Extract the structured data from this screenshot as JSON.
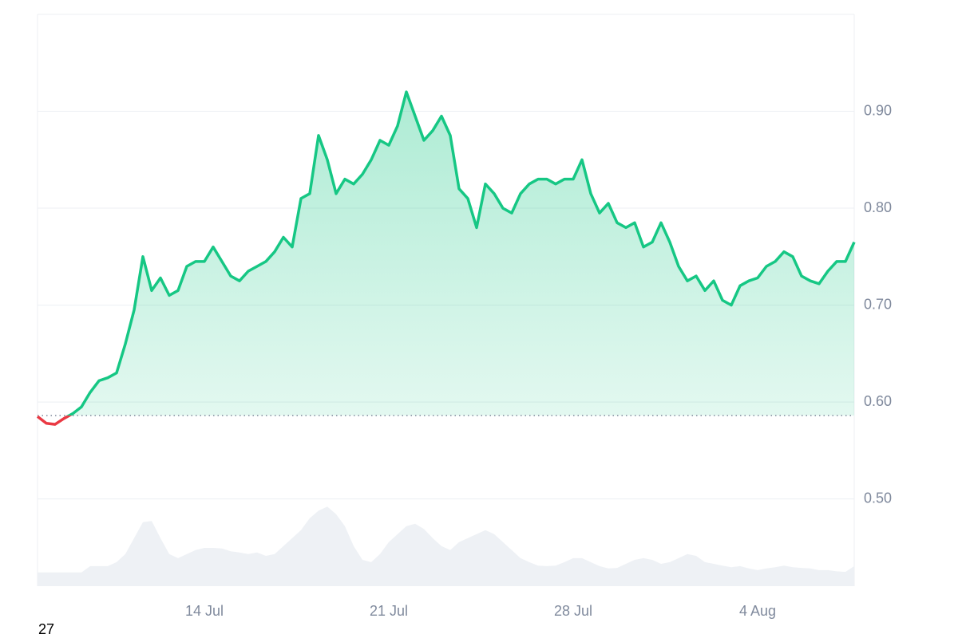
{
  "chart_data": {
    "type": "line",
    "categories": [
      null,
      null,
      null,
      null,
      null,
      null,
      null,
      null,
      null,
      null,
      null,
      null,
      null,
      null,
      null,
      null,
      null,
      null,
      null,
      "14 Jul",
      null,
      null,
      null,
      null,
      null,
      null,
      null,
      null,
      null,
      null,
      null,
      null,
      null,
      null,
      null,
      null,
      null,
      null,
      null,
      null,
      "21 Jul",
      null,
      null,
      null,
      null,
      null,
      null,
      null,
      null,
      null,
      null,
      null,
      null,
      null,
      null,
      null,
      null,
      null,
      null,
      null,
      null,
      "28 Jul",
      null,
      null,
      null,
      null,
      null,
      null,
      null,
      null,
      null,
      null,
      null,
      null,
      null,
      null,
      null,
      null,
      null,
      null,
      null,
      null,
      "4 Aug",
      null,
      null,
      null,
      null,
      null,
      null,
      null,
      null,
      null,
      null,
      null
    ],
    "series": [
      {
        "color": "#16c784",
        "down_color": "#ea3943",
        "values": [
          0.585,
          0.578,
          0.577,
          0.583,
          0.588,
          0.595,
          0.61,
          0.622,
          0.625,
          0.63,
          0.66,
          0.695,
          0.75,
          0.715,
          0.728,
          0.71,
          0.715,
          0.74,
          0.745,
          0.745,
          0.76,
          0.745,
          0.73,
          0.725,
          0.735,
          0.74,
          0.745,
          0.755,
          0.77,
          0.76,
          0.81,
          0.815,
          0.875,
          0.85,
          0.815,
          0.83,
          0.825,
          0.835,
          0.85,
          0.87,
          0.865,
          0.885,
          0.92,
          0.895,
          0.87,
          0.88,
          0.895,
          0.875,
          0.82,
          0.81,
          0.78,
          0.825,
          0.815,
          0.8,
          0.795,
          0.815,
          0.825,
          0.83,
          0.83,
          0.825,
          0.83,
          0.83,
          0.85,
          0.815,
          0.795,
          0.805,
          0.785,
          0.78,
          0.785,
          0.76,
          0.765,
          0.785,
          0.765,
          0.74,
          0.725,
          0.73,
          0.715,
          0.725,
          0.705,
          0.7,
          0.72,
          0.725,
          0.728,
          0.74,
          0.745,
          0.755,
          0.75,
          0.73,
          0.725,
          0.722,
          0.735,
          0.745,
          0.745,
          0.765
        ]
      },
      {
        "axis": "y2",
        "color": "#eef1f5",
        "values": [
          2.4,
          2.4,
          2.4,
          2.4,
          2.4,
          2.4,
          3.5,
          3.5,
          3.5,
          4.2,
          5.6,
          8.4,
          11.2,
          11.4,
          8.4,
          5.6,
          4.9,
          5.6,
          6.3,
          6.7,
          6.7,
          6.6,
          6.1,
          5.9,
          5.6,
          5.9,
          5.3,
          5.6,
          7.0,
          8.4,
          9.8,
          11.9,
          13.2,
          13.9,
          12.6,
          10.5,
          7.0,
          4.6,
          4.2,
          5.6,
          7.7,
          9.1,
          10.5,
          10.9,
          10.0,
          8.4,
          7.0,
          6.3,
          7.7,
          8.4,
          9.1,
          9.8,
          9.1,
          7.7,
          6.3,
          4.9,
          4.2,
          3.6,
          3.5,
          3.6,
          4.2,
          4.9,
          4.9,
          4.2,
          3.5,
          3.1,
          3.2,
          3.9,
          4.6,
          4.9,
          4.6,
          3.9,
          4.2,
          4.9,
          5.6,
          5.3,
          4.2,
          3.9,
          3.6,
          3.3,
          3.5,
          3.1,
          2.8,
          3.1,
          3.3,
          3.6,
          3.3,
          3.2,
          3.1,
          2.8,
          2.8,
          2.6,
          2.5,
          3.5
        ]
      }
    ],
    "baseline": 0.586,
    "ylim": [
      0.41,
      1.0
    ],
    "yticks": [
      {
        "value": 0.5,
        "label": "0.50"
      },
      {
        "value": 0.6,
        "label": "0.60"
      },
      {
        "value": 0.7,
        "label": "0.70"
      },
      {
        "value": 0.8,
        "label": "0.80"
      },
      {
        "value": 0.9,
        "label": "0.90"
      }
    ],
    "y2lim": [
      0,
      100
    ],
    "grid": true,
    "note": "27"
  }
}
